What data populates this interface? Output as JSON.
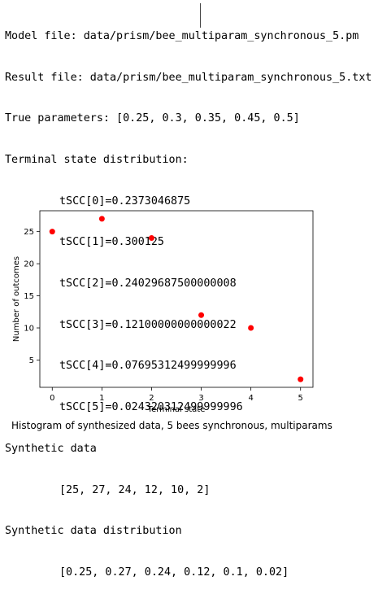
{
  "output": {
    "model_file": "Model file: data/prism/bee_multiparam_synchronous_5.pm",
    "result_file": "Result file: data/prism/bee_multiparam_synchronous_5.txt",
    "true_parameters": "True parameters: [0.25, 0.3, 0.35, 0.45, 0.5]",
    "terminal_header": "Terminal state distribution:",
    "tscc": [
      "tSCC[0]=0.2373046875",
      "tSCC[1]=0.300125",
      "tSCC[2]=0.24029687500000008",
      "tSCC[3]=0.12100000000000022",
      "tSCC[4]=0.07695312499999996",
      "tSCC[5]=0.024320312499999996"
    ],
    "synthetic_header": "Synthetic data",
    "synthetic_values": "[25, 27, 24, 12, 10, 2]",
    "synthetic_dist_header": "Synthetic data distribution",
    "synthetic_dist_values": "[0.25, 0.27, 0.24, 0.12, 0.1, 0.02]"
  },
  "chart_data": {
    "type": "scatter",
    "x": [
      0,
      1,
      2,
      3,
      4,
      5
    ],
    "y": [
      25,
      27,
      24,
      12,
      10,
      2
    ],
    "xlabel": "Terminal state",
    "ylabel": "Number of outcomes",
    "xticks": [
      "0",
      "1",
      "2",
      "3",
      "4",
      "5"
    ],
    "yticks": [
      "5",
      "10",
      "15",
      "20",
      "25"
    ],
    "xlim": [
      -0.25,
      5.25
    ],
    "ylim": [
      0.75,
      28.25
    ],
    "grid": false,
    "marker_color": "#ff0000"
  },
  "caption": "Histogram of synthesized data, 5 bees synchronous, multiparams"
}
